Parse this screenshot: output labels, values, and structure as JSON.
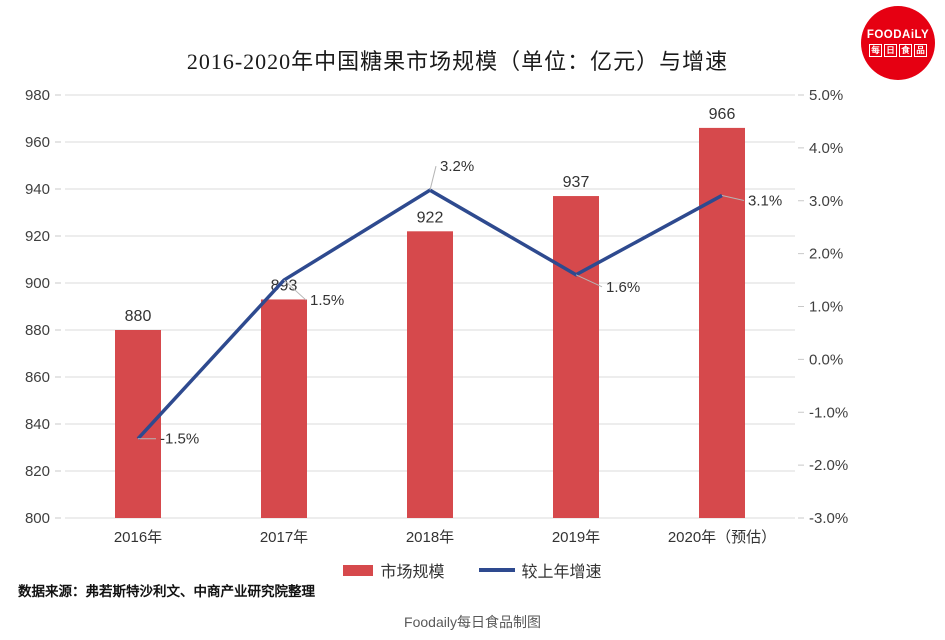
{
  "title": "2016-2020年中国糖果市场规模（单位：亿元）与增速",
  "source_note": "数据来源：弗若斯特沙利文、中商产业研究院整理",
  "footer_credit": "Foodaily每日食品制图",
  "logo": {
    "line1": "FOODAiLY",
    "chars": [
      "每",
      "日",
      "食",
      "品"
    ],
    "color": "#E60012"
  },
  "chart_data": {
    "type": "bar+line",
    "title": "2016-2020年中国糖果市场规模（单位：亿元）与增速",
    "categories": [
      "2016年",
      "2017年",
      "2018年",
      "2019年",
      "2020年（预估）"
    ],
    "series": [
      {
        "name": "市场规模",
        "type": "bar",
        "axis": "left",
        "color": "#D6494C",
        "values": [
          880,
          893,
          922,
          937,
          966
        ],
        "labels": [
          "880",
          "893",
          "922",
          "937",
          "966"
        ]
      },
      {
        "name": "较上年增速",
        "type": "line",
        "axis": "right",
        "color": "#2E4A8F",
        "values": [
          -1.5,
          1.5,
          3.2,
          1.6,
          3.1
        ],
        "labels": [
          "-1.5%",
          "1.5%",
          "3.2%",
          "1.6%",
          "3.1%"
        ]
      }
    ],
    "left_axis": {
      "min": 800,
      "max": 980,
      "step": 20,
      "tick_labels": [
        "980",
        "960",
        "940",
        "920",
        "900",
        "880",
        "860",
        "840",
        "820",
        "800"
      ]
    },
    "right_axis": {
      "min": -3.0,
      "max": 5.0,
      "step": 1.0,
      "tick_labels": [
        "5.0%",
        "4.0%",
        "3.0%",
        "2.0%",
        "1.0%",
        "0.0%",
        "-1.0%",
        "-2.0%",
        "-3.0%"
      ]
    },
    "grid": "horizontal",
    "legend_position": "bottom",
    "xlabel": "",
    "ylabel": ""
  }
}
